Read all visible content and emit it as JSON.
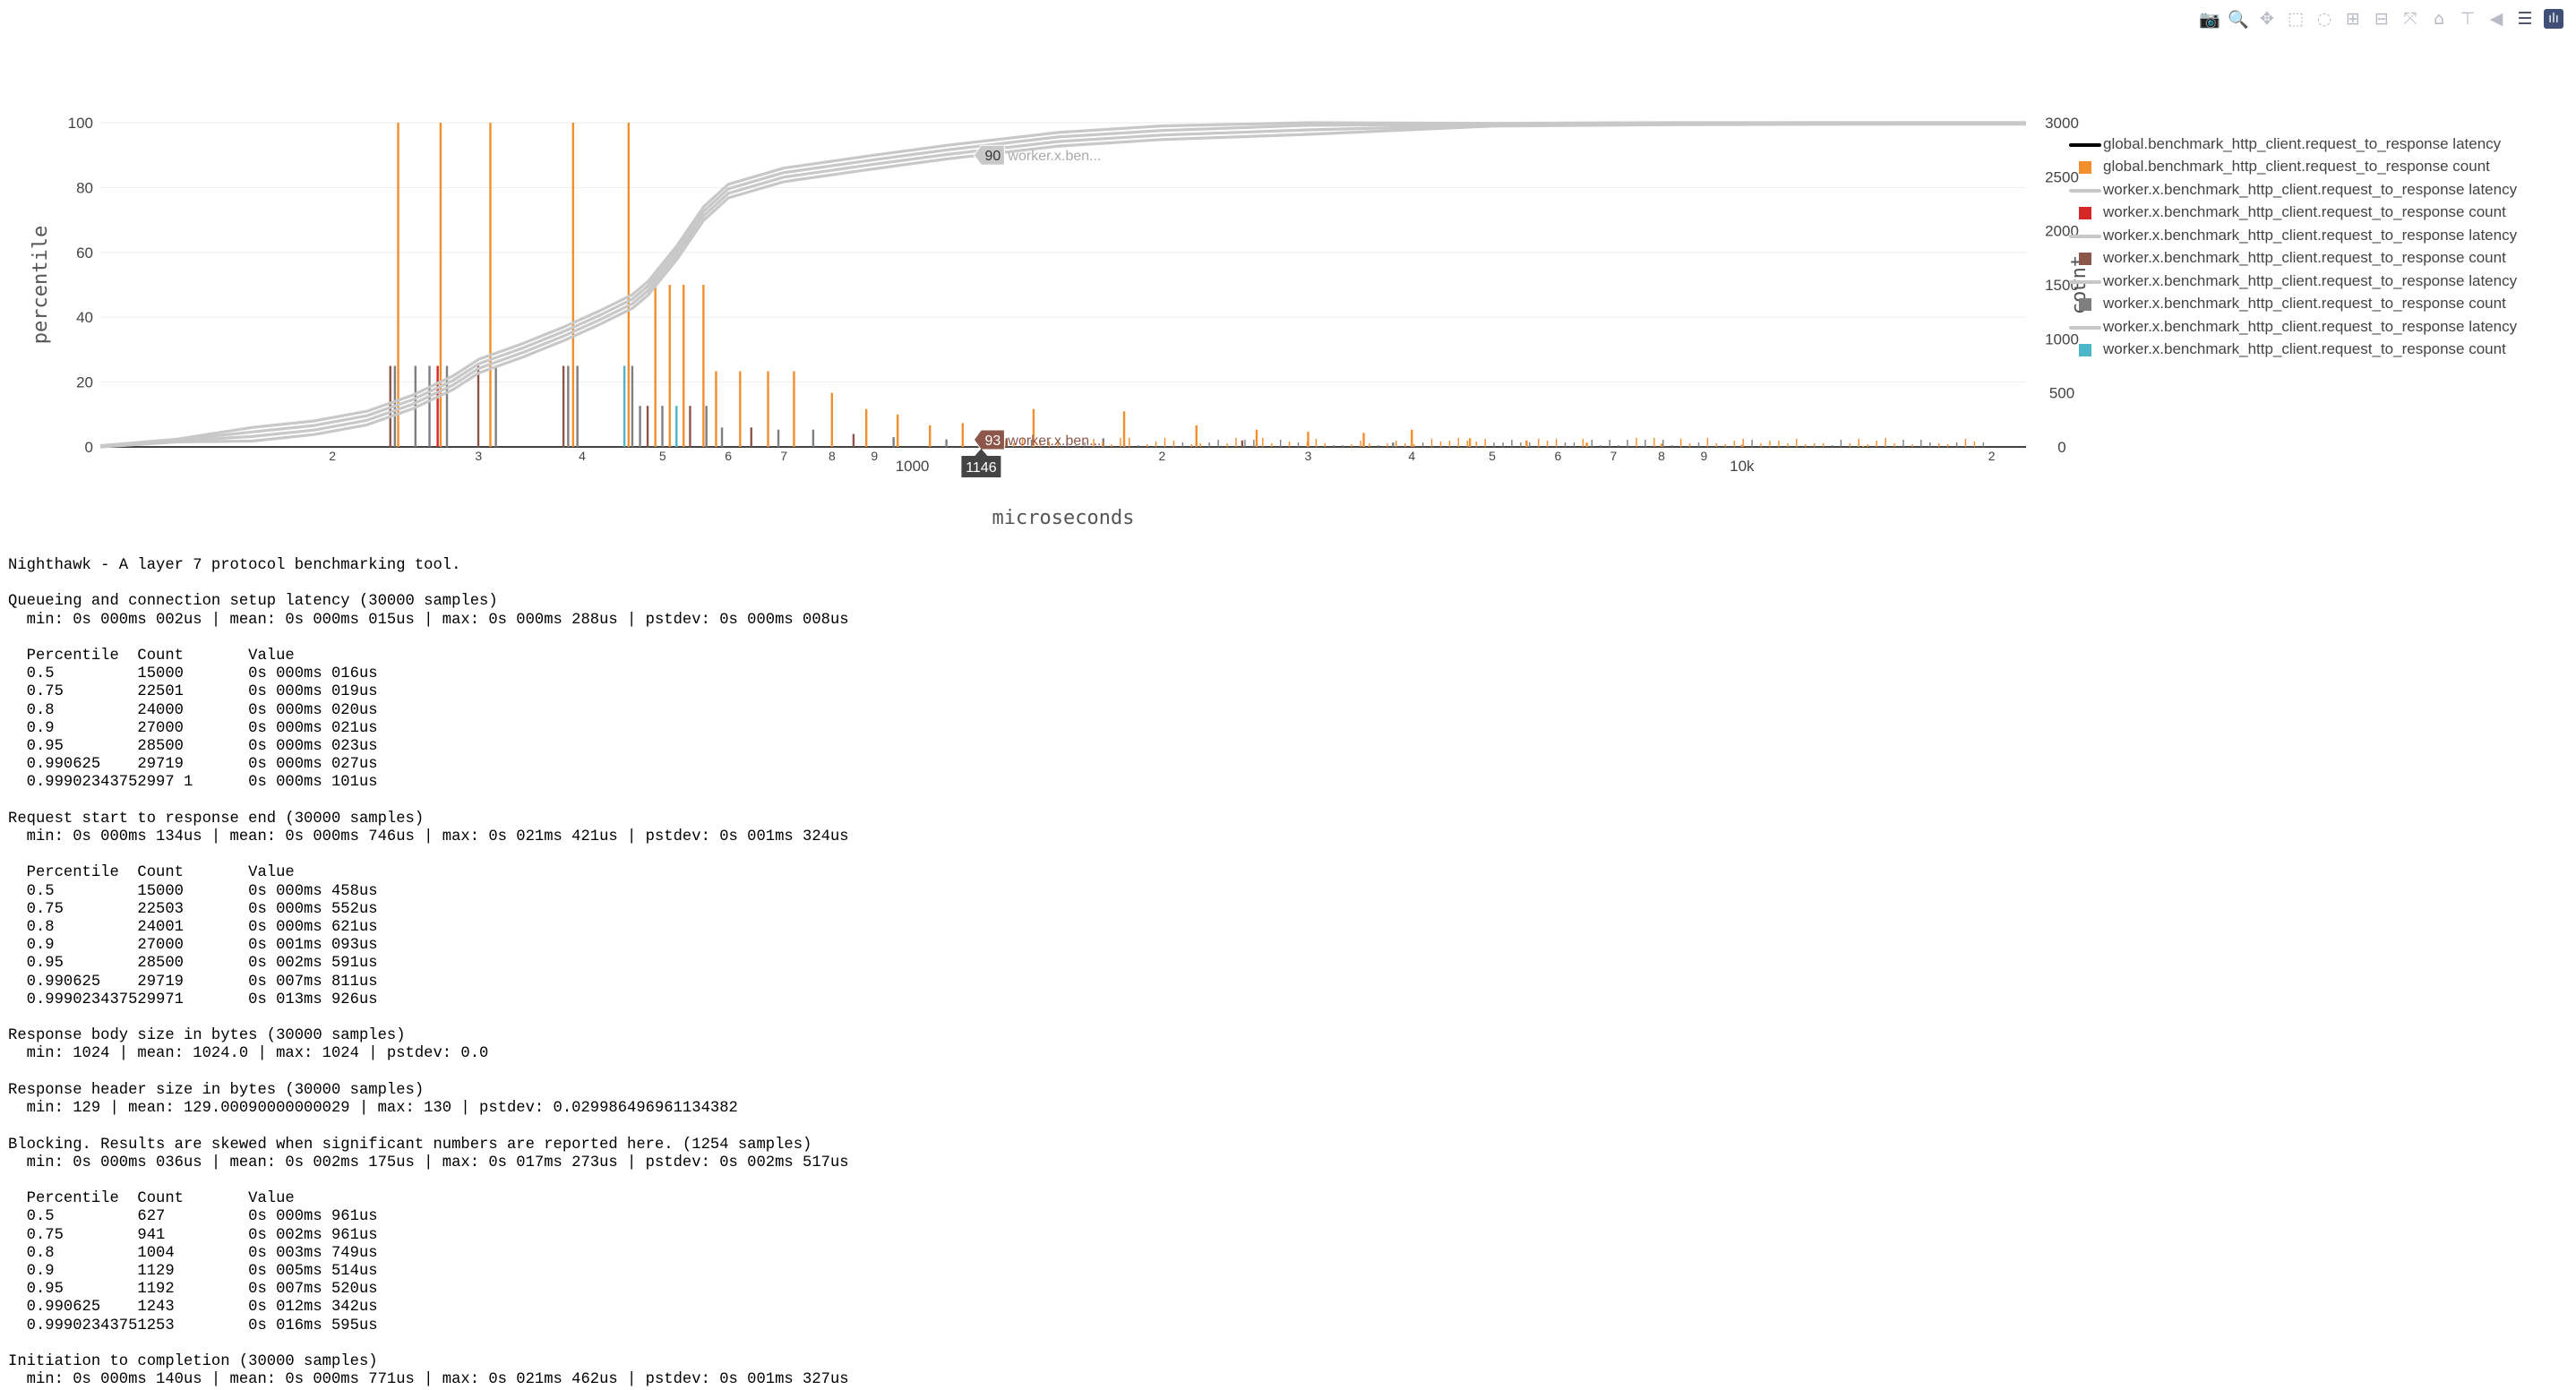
{
  "toolbar": {
    "buttons": [
      {
        "name": "camera-icon",
        "glyph": "📷",
        "label": "Download plot as a png"
      },
      {
        "name": "zoom-icon",
        "glyph": "🔍",
        "label": "Zoom"
      },
      {
        "name": "pan-icon",
        "glyph": "✥",
        "label": "Pan"
      },
      {
        "name": "box-select-icon",
        "glyph": "⬚",
        "label": "Box Select"
      },
      {
        "name": "lasso-select-icon",
        "glyph": "◌",
        "label": "Lasso Select"
      },
      {
        "name": "zoom-in-icon",
        "glyph": "⊞",
        "label": "Zoom in"
      },
      {
        "name": "zoom-out-icon",
        "glyph": "⊟",
        "label": "Zoom out"
      },
      {
        "name": "autoscale-icon",
        "glyph": "⤧",
        "label": "Autoscale"
      },
      {
        "name": "home-icon",
        "glyph": "⌂",
        "label": "Reset axes"
      },
      {
        "name": "spike-lines-icon",
        "glyph": "⊤",
        "label": "Toggle Spike Lines"
      },
      {
        "name": "hover-closest-icon",
        "glyph": "◀",
        "label": "Show closest data on hover"
      },
      {
        "name": "hover-compare-icon",
        "glyph": "☰",
        "label": "Compare data on hover"
      },
      {
        "name": "plotly-logo-icon",
        "glyph": "ılı",
        "label": "Produced with Plotly"
      }
    ]
  },
  "chart_data": {
    "type": "line",
    "xlabel": "microseconds",
    "x_scale": "log",
    "xlim": [
      105,
      22000
    ],
    "y_left": {
      "label": "percentile",
      "range": [
        0,
        100
      ],
      "ticks": [
        0,
        20,
        40,
        60,
        80,
        100
      ]
    },
    "y_right": {
      "label": "count",
      "range": [
        0,
        3000
      ],
      "ticks": [
        0,
        500,
        1000,
        1500,
        2000,
        2500,
        3000
      ]
    },
    "x_ticks": [
      {
        "v": 200,
        "t": "2"
      },
      {
        "v": 300,
        "t": "3"
      },
      {
        "v": 400,
        "t": "4"
      },
      {
        "v": 500,
        "t": "5"
      },
      {
        "v": 600,
        "t": "6"
      },
      {
        "v": 700,
        "t": "7"
      },
      {
        "v": 800,
        "t": "8"
      },
      {
        "v": 900,
        "t": "9"
      },
      {
        "v": 1000,
        "t": "1000"
      },
      {
        "v": 2000,
        "t": "2"
      },
      {
        "v": 3000,
        "t": "3"
      },
      {
        "v": 4000,
        "t": "4"
      },
      {
        "v": 5000,
        "t": "5"
      },
      {
        "v": 6000,
        "t": "6"
      },
      {
        "v": 7000,
        "t": "7"
      },
      {
        "v": 8000,
        "t": "8"
      },
      {
        "v": 9000,
        "t": "9"
      },
      {
        "v": 10000,
        "t": "10k"
      },
      {
        "v": 20000,
        "t": "2"
      }
    ],
    "latency_curve": {
      "x": [
        105,
        130,
        160,
        190,
        220,
        250,
        280,
        300,
        340,
        380,
        420,
        460,
        480,
        520,
        560,
        600,
        700,
        900,
        1100,
        1500,
        2000,
        3000,
        5000,
        8000,
        12000,
        22000
      ],
      "y": [
        0,
        2,
        4,
        6,
        9,
        14,
        20,
        25,
        30,
        35,
        40,
        45,
        49,
        60,
        72,
        79,
        84,
        88,
        91,
        95,
        97,
        98.6,
        99.4,
        99.8,
        99.95,
        100
      ]
    },
    "series": [
      {
        "name": "global.benchmark_http_client.request_to_response latency",
        "kind": "line",
        "color": "#000000"
      },
      {
        "name": "global.benchmark_http_client.request_to_response count",
        "kind": "bar",
        "color": "#f28e2c"
      },
      {
        "name": "worker.x.benchmark_http_client.request_to_response latency",
        "kind": "line",
        "color": "#c8c8c8"
      },
      {
        "name": "worker.x.benchmark_http_client.request_to_response count",
        "kind": "bar",
        "color": "#d62728"
      },
      {
        "name": "worker.x.benchmark_http_client.request_to_response latency",
        "kind": "line",
        "color": "#c8c8c8"
      },
      {
        "name": "worker.x.benchmark_http_client.request_to_response count",
        "kind": "bar",
        "color": "#8c564b"
      },
      {
        "name": "worker.x.benchmark_http_client.request_to_response latency",
        "kind": "line",
        "color": "#c8c8c8"
      },
      {
        "name": "worker.x.benchmark_http_client.request_to_response count",
        "kind": "bar",
        "color": "#7f7f7f"
      },
      {
        "name": "worker.x.benchmark_http_client.request_to_response latency",
        "kind": "line",
        "color": "#c8c8c8"
      },
      {
        "name": "worker.x.benchmark_http_client.request_to_response count",
        "kind": "bar",
        "color": "#4ab6c8"
      }
    ],
    "global_counts": [
      {
        "x": 240,
        "y": 3000
      },
      {
        "x": 270,
        "y": 3000
      },
      {
        "x": 310,
        "y": 3000
      },
      {
        "x": 390,
        "y": 3000
      },
      {
        "x": 455,
        "y": 3000
      },
      {
        "x": 490,
        "y": 1500
      },
      {
        "x": 510,
        "y": 1500
      },
      {
        "x": 530,
        "y": 1500
      },
      {
        "x": 560,
        "y": 1500
      },
      {
        "x": 580,
        "y": 700
      },
      {
        "x": 620,
        "y": 700
      },
      {
        "x": 670,
        "y": 700
      },
      {
        "x": 720,
        "y": 700
      },
      {
        "x": 800,
        "y": 500
      },
      {
        "x": 880,
        "y": 350
      },
      {
        "x": 960,
        "y": 300
      },
      {
        "x": 1050,
        "y": 200
      },
      {
        "x": 1150,
        "y": 220
      },
      {
        "x": 1400,
        "y": 350
      },
      {
        "x": 1800,
        "y": 330
      },
      {
        "x": 2200,
        "y": 200
      },
      {
        "x": 2600,
        "y": 160
      },
      {
        "x": 3000,
        "y": 140
      },
      {
        "x": 3500,
        "y": 130
      },
      {
        "x": 4000,
        "y": 160
      },
      {
        "x": 4700,
        "y": 80
      },
      {
        "x": 5500,
        "y": 60
      },
      {
        "x": 6500,
        "y": 40
      },
      {
        "x": 8000,
        "y": 30
      },
      {
        "x": 10000,
        "y": 20
      },
      {
        "x": 14000,
        "y": 10
      }
    ],
    "worker_counts": [
      {
        "x": 235,
        "y": 750,
        "c": "#8c564b"
      },
      {
        "x": 238,
        "y": 750,
        "c": "#7f7f7f"
      },
      {
        "x": 252,
        "y": 750,
        "c": "#7f7f7f"
      },
      {
        "x": 262,
        "y": 750,
        "c": "#7f7f7f"
      },
      {
        "x": 268,
        "y": 750,
        "c": "#d62728"
      },
      {
        "x": 275,
        "y": 750,
        "c": "#7f7f7f"
      },
      {
        "x": 300,
        "y": 750,
        "c": "#8c564b"
      },
      {
        "x": 315,
        "y": 750,
        "c": "#7f7f7f"
      },
      {
        "x": 380,
        "y": 750,
        "c": "#8c564b"
      },
      {
        "x": 385,
        "y": 750,
        "c": "#7f7f7f"
      },
      {
        "x": 395,
        "y": 750,
        "c": "#7f7f7f"
      },
      {
        "x": 450,
        "y": 750,
        "c": "#4ab6c8"
      },
      {
        "x": 460,
        "y": 750,
        "c": "#7f7f7f"
      },
      {
        "x": 470,
        "y": 380,
        "c": "#7f7f7f"
      },
      {
        "x": 480,
        "y": 380,
        "c": "#8c564b"
      },
      {
        "x": 500,
        "y": 380,
        "c": "#7f7f7f"
      },
      {
        "x": 520,
        "y": 380,
        "c": "#4ab6c8"
      },
      {
        "x": 540,
        "y": 380,
        "c": "#8c564b"
      },
      {
        "x": 565,
        "y": 380,
        "c": "#7f7f7f"
      },
      {
        "x": 590,
        "y": 180,
        "c": "#7f7f7f"
      },
      {
        "x": 640,
        "y": 180,
        "c": "#8c564b"
      },
      {
        "x": 690,
        "y": 160,
        "c": "#7f7f7f"
      },
      {
        "x": 760,
        "y": 160,
        "c": "#7f7f7f"
      },
      {
        "x": 850,
        "y": 120,
        "c": "#8c564b"
      },
      {
        "x": 950,
        "y": 90,
        "c": "#7f7f7f"
      },
      {
        "x": 1100,
        "y": 70,
        "c": "#7f7f7f"
      },
      {
        "x": 1300,
        "y": 80,
        "c": "#8c564b"
      },
      {
        "x": 1700,
        "y": 80,
        "c": "#7f7f7f"
      },
      {
        "x": 2500,
        "y": 60,
        "c": "#8c564b"
      },
      {
        "x": 3800,
        "y": 40,
        "c": "#7f7f7f"
      }
    ],
    "annotations": [
      {
        "x": 1146,
        "y": 90,
        "value": "90",
        "label": "worker.x.ben...",
        "color": "#c8c8c8"
      },
      {
        "x": 1146,
        "y": 93,
        "value": "93",
        "label": "worker.x.ben...",
        "color": "#8c564b",
        "axis": "right"
      }
    ],
    "x_spike_label": "1146"
  },
  "report": {
    "lines": [
      "Nighthawk - A layer 7 protocol benchmarking tool.",
      "",
      "Queueing and connection setup latency (30000 samples)",
      "  min: 0s 000ms 002us | mean: 0s 000ms 015us | max: 0s 000ms 288us | pstdev: 0s 000ms 008us",
      "",
      "  Percentile  Count       Value",
      "  0.5         15000       0s 000ms 016us",
      "  0.75        22501       0s 000ms 019us",
      "  0.8         24000       0s 000ms 020us",
      "  0.9         27000       0s 000ms 021us",
      "  0.95        28500       0s 000ms 023us",
      "  0.990625    29719       0s 000ms 027us",
      "  0.99902343752997 1      0s 000ms 101us",
      "",
      "Request start to response end (30000 samples)",
      "  min: 0s 000ms 134us | mean: 0s 000ms 746us | max: 0s 021ms 421us | pstdev: 0s 001ms 324us",
      "",
      "  Percentile  Count       Value",
      "  0.5         15000       0s 000ms 458us",
      "  0.75        22503       0s 000ms 552us",
      "  0.8         24001       0s 000ms 621us",
      "  0.9         27000       0s 001ms 093us",
      "  0.95        28500       0s 002ms 591us",
      "  0.990625    29719       0s 007ms 811us",
      "  0.999023437529971       0s 013ms 926us",
      "",
      "Response body size in bytes (30000 samples)",
      "  min: 1024 | mean: 1024.0 | max: 1024 | pstdev: 0.0",
      "",
      "Response header size in bytes (30000 samples)",
      "  min: 129 | mean: 129.00090000000029 | max: 130 | pstdev: 0.029986496961134382",
      "",
      "Blocking. Results are skewed when significant numbers are reported here. (1254 samples)",
      "  min: 0s 000ms 036us | mean: 0s 002ms 175us | max: 0s 017ms 273us | pstdev: 0s 002ms 517us",
      "",
      "  Percentile  Count       Value",
      "  0.5         627         0s 000ms 961us",
      "  0.75        941         0s 002ms 961us",
      "  0.8         1004        0s 003ms 749us",
      "  0.9         1129        0s 005ms 514us",
      "  0.95        1192        0s 007ms 520us",
      "  0.990625    1243        0s 012ms 342us",
      "  0.99902343751253        0s 016ms 595us",
      "",
      "Initiation to completion (30000 samples)",
      "  min: 0s 000ms 140us | mean: 0s 000ms 771us | max: 0s 021ms 462us | pstdev: 0s 001ms 327us"
    ]
  }
}
